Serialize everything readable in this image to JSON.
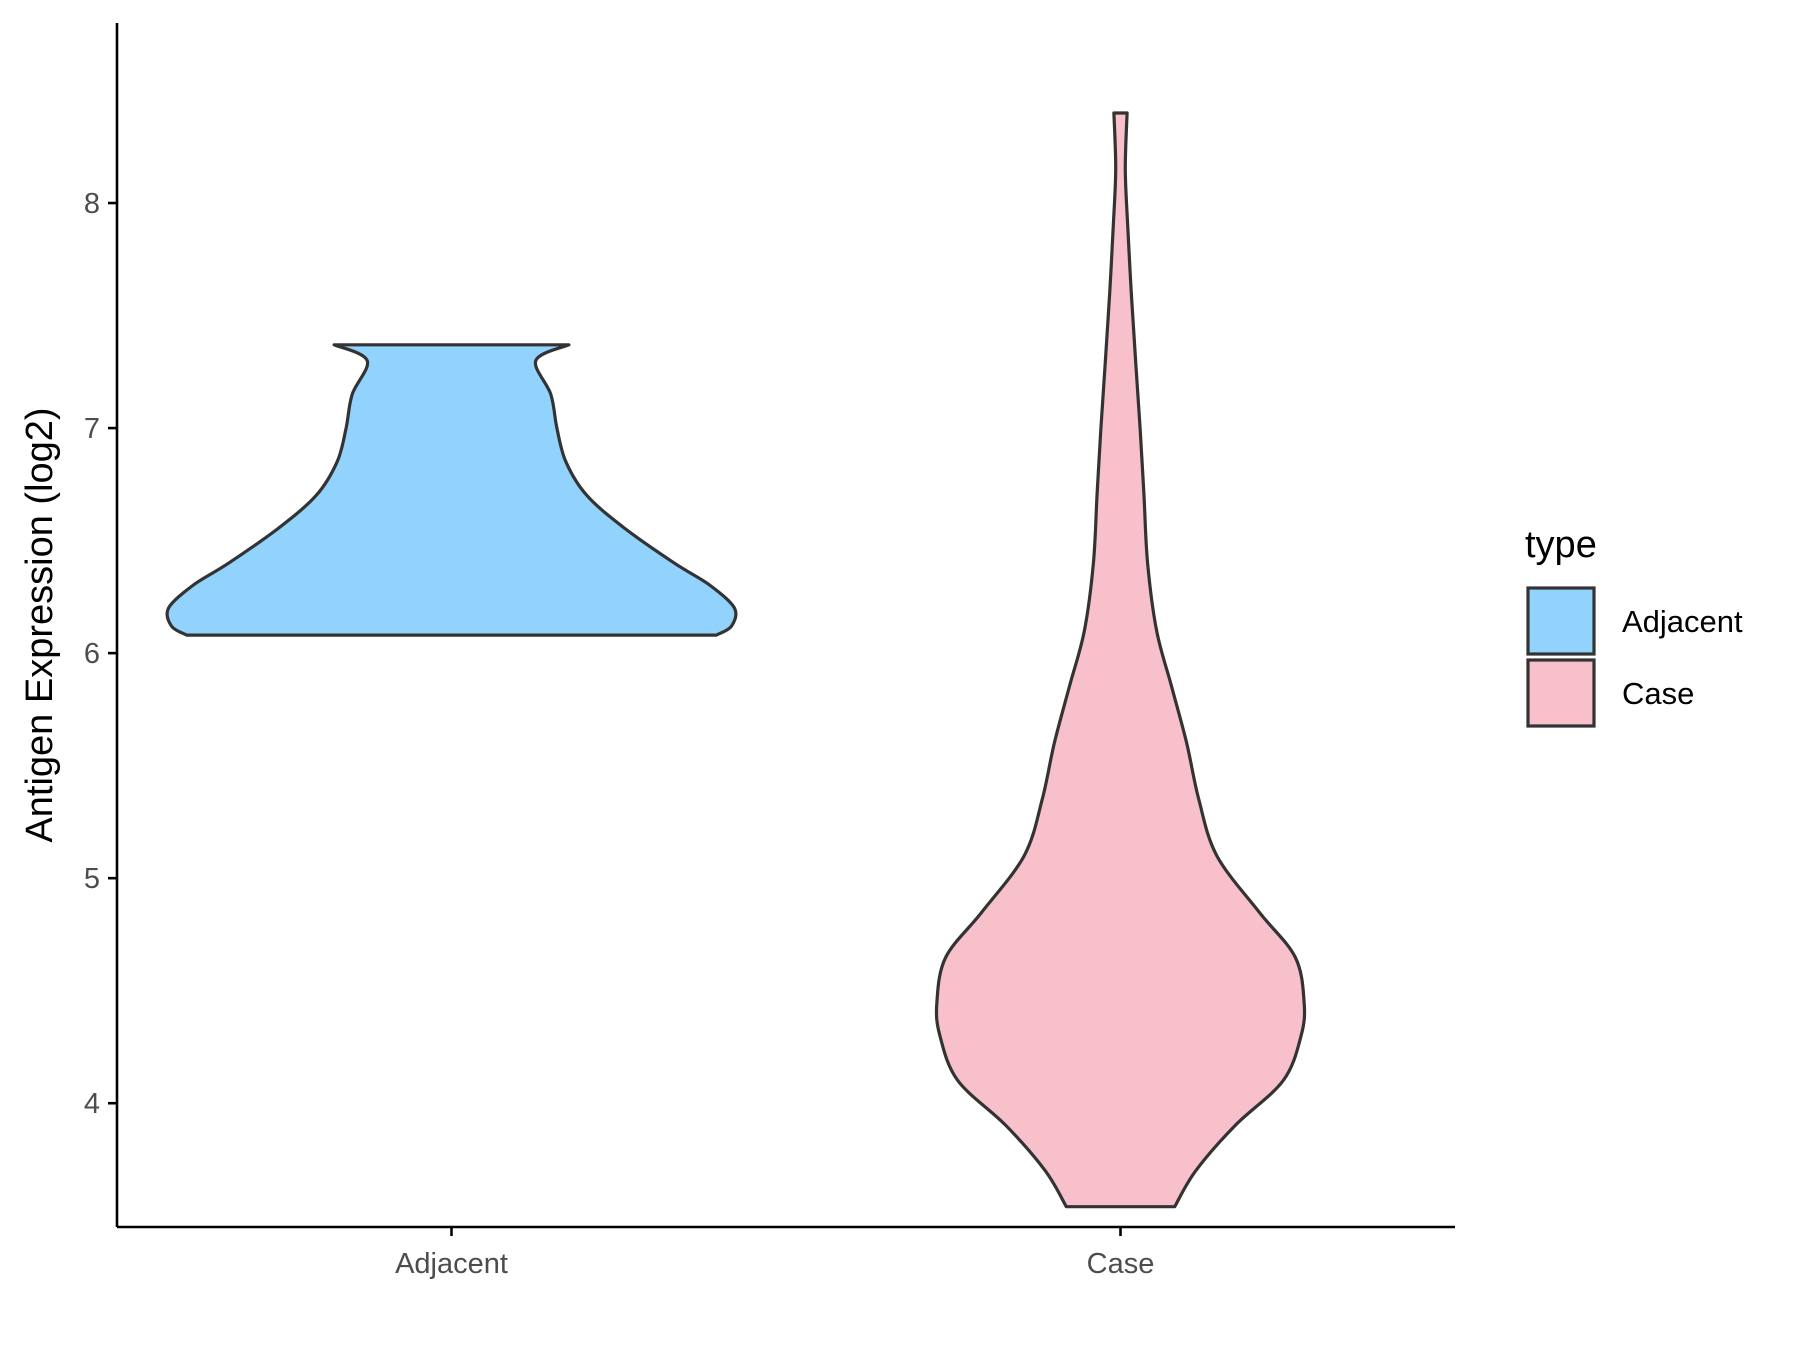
{
  "chart_data": {
    "type": "violin",
    "title": "",
    "xlabel": "",
    "ylabel": "Antigen Expression (log2)",
    "categories": [
      "Adjacent",
      "Case"
    ],
    "yticks": [
      4,
      5,
      6,
      7,
      8
    ],
    "ylim": [
      3.45,
      8.8
    ],
    "grid": false,
    "legend": {
      "title": "type",
      "position": "right",
      "entries": [
        {
          "label": "Adjacent",
          "color": "#92D3FD"
        },
        {
          "label": "Case",
          "color": "#F7C0CB"
        }
      ]
    },
    "outline_color": "#333333",
    "violins": [
      {
        "category": "Adjacent",
        "color": "#92D3FD",
        "min": 6.08,
        "max": 7.37,
        "profile": [
          [
            6.08,
            0.88
          ],
          [
            6.12,
            0.93
          ],
          [
            6.2,
            0.94
          ],
          [
            6.3,
            0.86
          ],
          [
            6.4,
            0.74
          ],
          [
            6.55,
            0.58
          ],
          [
            6.7,
            0.45
          ],
          [
            6.85,
            0.38
          ],
          [
            7.0,
            0.35
          ],
          [
            7.15,
            0.33
          ],
          [
            7.3,
            0.28
          ],
          [
            7.37,
            0.39
          ]
        ]
      },
      {
        "category": "Case",
        "color": "#F7C0CB",
        "min": 3.54,
        "max": 8.4,
        "profile": [
          [
            3.54,
            0.18
          ],
          [
            3.7,
            0.25
          ],
          [
            3.9,
            0.38
          ],
          [
            4.1,
            0.54
          ],
          [
            4.3,
            0.6
          ],
          [
            4.45,
            0.61
          ],
          [
            4.65,
            0.58
          ],
          [
            4.85,
            0.46
          ],
          [
            5.1,
            0.32
          ],
          [
            5.35,
            0.26
          ],
          [
            5.6,
            0.22
          ],
          [
            5.85,
            0.17
          ],
          [
            6.1,
            0.12
          ],
          [
            6.4,
            0.09
          ],
          [
            6.7,
            0.078
          ],
          [
            7.0,
            0.065
          ],
          [
            7.3,
            0.05
          ],
          [
            7.6,
            0.036
          ],
          [
            7.9,
            0.024
          ],
          [
            8.15,
            0.016
          ],
          [
            8.4,
            0.022
          ]
        ]
      }
    ]
  }
}
